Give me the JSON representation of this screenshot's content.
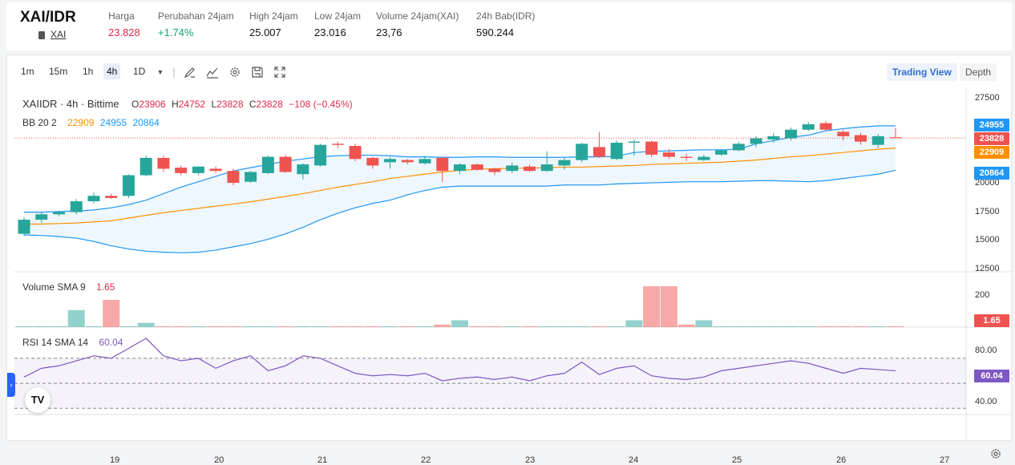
{
  "header": {
    "pair": "XAI/IDR",
    "sub": "XAI",
    "stats": [
      {
        "label": "Harga",
        "value": "23.828"
      },
      {
        "label": "Perubahan 24jam",
        "value": "+1.74%"
      },
      {
        "label": "High 24jam",
        "value": "25.007"
      },
      {
        "label": "Low 24jam",
        "value": "23.016"
      },
      {
        "label": "Volume 24jam(XAI)",
        "value": "23,76"
      },
      {
        "label": "24h Bab(IDR)",
        "value": "590.244"
      }
    ]
  },
  "toolbar": {
    "timeframes": [
      "1m",
      "15m",
      "1h",
      "4h",
      "1D"
    ],
    "active": "4h",
    "trading_view": "Trading View",
    "depth": "Depth"
  },
  "legend": {
    "symbol": "XAIIDR · 4h · Bittime",
    "o_label": "O",
    "o": "23906",
    "h_label": "H",
    "h": "24752",
    "l_label": "L",
    "l": "23828",
    "c_label": "C",
    "c": "23828",
    "change": "−108 (−0.45%)",
    "bb_label": "BB 20 2",
    "bb_basis": "22909",
    "bb_upper": "24955",
    "bb_lower": "20864",
    "vol_label": "Volume SMA 9",
    "vol_value": "1.65",
    "rsi_label": "RSI 14 SMA 14",
    "rsi_value": "60.04"
  },
  "price_boxes": {
    "upper": "24955",
    "last": "23828",
    "basis": "22909",
    "lower": "20864",
    "vol": "1.65",
    "rsi": "60.04"
  },
  "y_labels": [
    "27500",
    "25000",
    "22500",
    "20000",
    "17500",
    "15000",
    "12500"
  ],
  "vol_axis": [
    "200"
  ],
  "rsi_axis": [
    "80.00",
    "40.00"
  ],
  "x_labels": [
    "19",
    "20",
    "21",
    "22",
    "23",
    "24",
    "25",
    "26",
    "27"
  ],
  "colors": {
    "up": "#26a69a",
    "down": "#ef5350",
    "basis": "#ff8f00",
    "band": "#2196f3",
    "rsi": "#7e57c2"
  },
  "chart_data": {
    "type": "candlestick",
    "candles": [
      {
        "o": 15000,
        "h": 16500,
        "l": 14800,
        "c": 16300
      },
      {
        "o": 16300,
        "h": 17000,
        "l": 16000,
        "c": 16800
      },
      {
        "o": 16800,
        "h": 17100,
        "l": 16600,
        "c": 17000
      },
      {
        "o": 17000,
        "h": 18200,
        "l": 16800,
        "c": 18000
      },
      {
        "o": 18000,
        "h": 18800,
        "l": 17800,
        "c": 18500
      },
      {
        "o": 18500,
        "h": 18700,
        "l": 18200,
        "c": 18300
      },
      {
        "o": 18500,
        "h": 20500,
        "l": 18300,
        "c": 20400
      },
      {
        "o": 20400,
        "h": 22200,
        "l": 20300,
        "c": 22000
      },
      {
        "o": 22000,
        "h": 22200,
        "l": 20700,
        "c": 21000
      },
      {
        "o": 21100,
        "h": 21300,
        "l": 20400,
        "c": 20600
      },
      {
        "o": 20600,
        "h": 21200,
        "l": 20400,
        "c": 21200
      },
      {
        "o": 21000,
        "h": 21200,
        "l": 20600,
        "c": 20800
      },
      {
        "o": 20800,
        "h": 21000,
        "l": 19500,
        "c": 19700
      },
      {
        "o": 19800,
        "h": 20800,
        "l": 19700,
        "c": 20700
      },
      {
        "o": 20600,
        "h": 22200,
        "l": 20500,
        "c": 22100
      },
      {
        "o": 22100,
        "h": 22300,
        "l": 20600,
        "c": 20700
      },
      {
        "o": 20500,
        "h": 21500,
        "l": 20000,
        "c": 21400
      },
      {
        "o": 21300,
        "h": 23300,
        "l": 21200,
        "c": 23200
      },
      {
        "o": 23300,
        "h": 23500,
        "l": 22900,
        "c": 23200
      },
      {
        "o": 23100,
        "h": 23300,
        "l": 21700,
        "c": 21900
      },
      {
        "o": 22000,
        "h": 22100,
        "l": 21000,
        "c": 21300
      },
      {
        "o": 21600,
        "h": 22100,
        "l": 21000,
        "c": 21900
      },
      {
        "o": 21800,
        "h": 21900,
        "l": 21400,
        "c": 21600
      },
      {
        "o": 21500,
        "h": 22200,
        "l": 21400,
        "c": 21900
      },
      {
        "o": 22000,
        "h": 22000,
        "l": 19800,
        "c": 20800
      },
      {
        "o": 20800,
        "h": 21500,
        "l": 20500,
        "c": 21400
      },
      {
        "o": 21400,
        "h": 21500,
        "l": 20800,
        "c": 20900
      },
      {
        "o": 21000,
        "h": 21100,
        "l": 20400,
        "c": 20700
      },
      {
        "o": 20800,
        "h": 21600,
        "l": 20600,
        "c": 21300
      },
      {
        "o": 21200,
        "h": 21400,
        "l": 20700,
        "c": 20800
      },
      {
        "o": 20800,
        "h": 22600,
        "l": 20700,
        "c": 21400
      },
      {
        "o": 21300,
        "h": 22000,
        "l": 20900,
        "c": 21800
      },
      {
        "o": 21800,
        "h": 23400,
        "l": 21600,
        "c": 23300
      },
      {
        "o": 23000,
        "h": 24400,
        "l": 22000,
        "c": 22100
      },
      {
        "o": 21900,
        "h": 23600,
        "l": 21800,
        "c": 23400
      },
      {
        "o": 23400,
        "h": 23700,
        "l": 22200,
        "c": 23500
      },
      {
        "o": 23500,
        "h": 23600,
        "l": 22100,
        "c": 22300
      },
      {
        "o": 22500,
        "h": 22800,
        "l": 21900,
        "c": 22100
      },
      {
        "o": 22100,
        "h": 22400,
        "l": 21700,
        "c": 22000
      },
      {
        "o": 21800,
        "h": 22300,
        "l": 21700,
        "c": 22100
      },
      {
        "o": 22300,
        "h": 22800,
        "l": 22200,
        "c": 22700
      },
      {
        "o": 22700,
        "h": 23500,
        "l": 22600,
        "c": 23300
      },
      {
        "o": 23300,
        "h": 24000,
        "l": 23000,
        "c": 23800
      },
      {
        "o": 23700,
        "h": 24300,
        "l": 23400,
        "c": 24000
      },
      {
        "o": 23800,
        "h": 24800,
        "l": 23600,
        "c": 24600
      },
      {
        "o": 24600,
        "h": 25300,
        "l": 24500,
        "c": 25100
      },
      {
        "o": 25200,
        "h": 25400,
        "l": 24500,
        "c": 24600
      },
      {
        "o": 24400,
        "h": 24600,
        "l": 23600,
        "c": 24000
      },
      {
        "o": 24100,
        "h": 24300,
        "l": 23200,
        "c": 23500
      },
      {
        "o": 23200,
        "h": 24200,
        "l": 22900,
        "c": 24000
      },
      {
        "o": 23906,
        "h": 24752,
        "l": 23828,
        "c": 23828
      }
    ],
    "bb_upper": [
      17000,
      17000,
      17050,
      17100,
      17200,
      17400,
      17700,
      18100,
      18700,
      19300,
      19800,
      20300,
      20800,
      21100,
      21400,
      21700,
      21900,
      22100,
      22200,
      22250,
      22250,
      22200,
      22100,
      22100,
      22050,
      22050,
      22100,
      22100,
      22050,
      22050,
      22050,
      22050,
      22100,
      22100,
      22150,
      22500,
      22600,
      22650,
      22700,
      22750,
      22750,
      22800,
      23300,
      23600,
      23900,
      24100,
      24500,
      24700,
      24850,
      24950,
      24955
    ],
    "bb_basis": [
      15900,
      15900,
      15950,
      16000,
      16100,
      16200,
      16450,
      16700,
      16950,
      17150,
      17350,
      17550,
      17750,
      17950,
      18200,
      18450,
      18700,
      19000,
      19300,
      19550,
      19800,
      20100,
      20300,
      20500,
      20700,
      20850,
      20950,
      21000,
      21050,
      21050,
      21100,
      21150,
      21150,
      21200,
      21250,
      21300,
      21400,
      21450,
      21500,
      21550,
      21600,
      21700,
      21800,
      21950,
      22100,
      22200,
      22350,
      22500,
      22650,
      22800,
      22909
    ],
    "bb_lower": [
      14900,
      14850,
      14750,
      14600,
      14300,
      13900,
      13600,
      13400,
      13300,
      13250,
      13300,
      13500,
      13800,
      14100,
      14500,
      15000,
      15600,
      16300,
      16900,
      17400,
      17800,
      18100,
      18600,
      19000,
      19300,
      19400,
      19400,
      19400,
      19400,
      19400,
      19400,
      19500,
      19500,
      19500,
      19600,
      19650,
      19700,
      19750,
      19800,
      19800,
      19800,
      19850,
      19900,
      19900,
      19850,
      19800,
      19900,
      20100,
      20300,
      20500,
      20864
    ],
    "volume": [
      0.5,
      0.5,
      0.5,
      100,
      0.5,
      160,
      0.5,
      25,
      0.5,
      0.5,
      0.5,
      0.5,
      0.5,
      0.5,
      0.5,
      0.5,
      0.5,
      0.5,
      0.5,
      0.5,
      0.5,
      0.5,
      0.5,
      0.5,
      15,
      40,
      0.5,
      0.5,
      0.5,
      0.5,
      0.5,
      0.5,
      0.5,
      0.5,
      0.5,
      40,
      240,
      240,
      15,
      40,
      0.5,
      0.5,
      0.5,
      0.5,
      0.5,
      0.5,
      0.5,
      0.5,
      0.5,
      0.5,
      1.65
    ],
    "rsi": [
      55,
      62,
      64,
      68,
      72,
      70,
      78,
      86,
      72,
      68,
      70,
      62,
      68,
      72,
      60,
      64,
      72,
      70,
      64,
      58,
      56,
      57,
      56,
      58,
      52,
      54,
      55,
      53,
      55,
      52,
      56,
      58,
      67,
      57,
      62,
      64,
      56,
      54,
      53,
      55,
      60,
      62,
      64,
      66,
      68,
      66,
      62,
      58,
      62,
      61,
      60.04
    ],
    "y_range": [
      11500,
      28500
    ],
    "rsi_range": [
      25,
      95
    ]
  }
}
